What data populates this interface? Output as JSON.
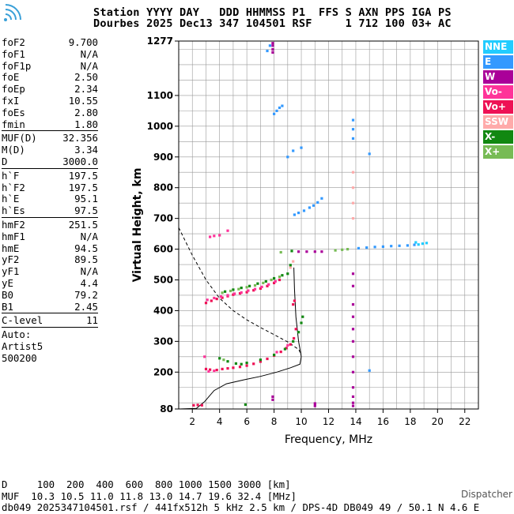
{
  "header": {
    "line1": "Station YYYY DAY   DDD HHMMSS P1  FFS S AXN PPS IGA PS",
    "line2": "Dourbes 2025 Dec13 347 104501 RSF     1 712 100 03+ AC"
  },
  "logo_icon": "signal-waves-icon",
  "params": [
    {
      "label": "foF2",
      "value": "9.700"
    },
    {
      "label": "foF1",
      "value": "N/A"
    },
    {
      "label": "foF1p",
      "value": "N/A"
    },
    {
      "label": "foE",
      "value": "2.50"
    },
    {
      "label": "foEp",
      "value": "2.34"
    },
    {
      "label": "fxI",
      "value": "10.55"
    },
    {
      "label": "foEs",
      "value": "2.80"
    },
    {
      "label": "fmin",
      "value": "1.80"
    },
    {
      "sep": true
    },
    {
      "label": "MUF(D)",
      "value": "32.356"
    },
    {
      "label": "M(D)",
      "value": "3.34"
    },
    {
      "label": "D",
      "value": "3000.0"
    },
    {
      "sep": true
    },
    {
      "label": "h`F",
      "value": "197.5"
    },
    {
      "label": "h`F2",
      "value": "197.5"
    },
    {
      "label": "h`E",
      "value": "95.1"
    },
    {
      "label": "h`Es",
      "value": "97.5"
    },
    {
      "sep": true
    },
    {
      "label": "hmF2",
      "value": "251.5"
    },
    {
      "label": "hmF1",
      "value": "N/A"
    },
    {
      "label": "hmE",
      "value": "94.5"
    },
    {
      "label": "yF2",
      "value": "89.5"
    },
    {
      "label": "yF1",
      "value": "N/A"
    },
    {
      "label": "yE",
      "value": "4.4"
    },
    {
      "label": "B0",
      "value": "79.2"
    },
    {
      "label": "B1",
      "value": "2.45"
    },
    {
      "sep": true
    },
    {
      "label": "C-level",
      "value": "11"
    },
    {
      "sep": true
    },
    {
      "note": "Auto:"
    },
    {
      "note": "Artist5"
    },
    {
      "note": "500200"
    }
  ],
  "legend": [
    {
      "label": "NNE",
      "color": "#22ccff"
    },
    {
      "label": "E",
      "color": "#3399ff"
    },
    {
      "label": "W",
      "color": "#aa0099"
    },
    {
      "label": "Vo-",
      "color": "#ff3399"
    },
    {
      "label": "Vo+",
      "color": "#ee1155"
    },
    {
      "label": "SSW",
      "color": "#ffaaaa"
    },
    {
      "label": "X-",
      "color": "#118811"
    },
    {
      "label": "X+",
      "color": "#77bb55"
    }
  ],
  "chart_data": {
    "type": "scatter",
    "xlabel": "Frequency, MHz",
    "ylabel": "Virtual Height, km",
    "xlim": [
      1,
      23
    ],
    "ylim": [
      80,
      1277
    ],
    "x_ticks": [
      2,
      4,
      6,
      8,
      10,
      12,
      14,
      16,
      18,
      20,
      22
    ],
    "y_ticks": [
      80,
      200,
      300,
      400,
      500,
      600,
      700,
      800,
      900,
      1000,
      1100,
      1277
    ],
    "grid": true,
    "series": [
      {
        "name": "Vo+",
        "color": "#ee1155",
        "points": [
          [
            2.1,
            92
          ],
          [
            2.4,
            93
          ],
          [
            2.7,
            92
          ],
          [
            3.0,
            210
          ],
          [
            3.3,
            208
          ],
          [
            3.8,
            207
          ],
          [
            4.2,
            210
          ],
          [
            4.6,
            212
          ],
          [
            5.0,
            214
          ],
          [
            5.5,
            217
          ],
          [
            6.0,
            221
          ],
          [
            6.5,
            227
          ],
          [
            7.0,
            234
          ],
          [
            7.5,
            243
          ],
          [
            8.0,
            254
          ],
          [
            8.5,
            266
          ],
          [
            8.9,
            278
          ],
          [
            9.2,
            290
          ],
          [
            9.45,
            310
          ],
          [
            9.6,
            340
          ],
          [
            3.0,
            425
          ],
          [
            3.4,
            432
          ],
          [
            3.8,
            438
          ],
          [
            4.2,
            442
          ],
          [
            4.6,
            447
          ],
          [
            5.0,
            452
          ],
          [
            5.5,
            456
          ],
          [
            6.0,
            460
          ],
          [
            6.5,
            466
          ],
          [
            7.0,
            472
          ],
          [
            7.5,
            480
          ],
          [
            8.0,
            490
          ],
          [
            8.4,
            500
          ],
          [
            9.4,
            420
          ],
          [
            9.5,
            432
          ]
        ]
      },
      {
        "name": "Vo-",
        "color": "#ff3399",
        "points": [
          [
            3.1,
            435
          ],
          [
            3.6,
            441
          ],
          [
            4.1,
            446
          ],
          [
            4.6,
            450
          ],
          [
            5.1,
            455
          ],
          [
            5.6,
            459
          ],
          [
            6.1,
            465
          ],
          [
            6.6,
            470
          ],
          [
            7.1,
            477
          ],
          [
            7.6,
            485
          ],
          [
            8.1,
            495
          ],
          [
            3.2,
            202
          ],
          [
            3.6,
            204
          ],
          [
            8.2,
            265
          ],
          [
            9.0,
            287
          ],
          [
            3.3,
            640
          ],
          [
            3.6,
            643
          ],
          [
            4.0,
            645
          ],
          [
            4.6,
            660
          ],
          [
            2.9,
            250
          ]
        ]
      },
      {
        "name": "W",
        "color": "#aa0099",
        "points": [
          [
            7.9,
            1240
          ],
          [
            7.9,
            1250
          ],
          [
            7.9,
            1262
          ],
          [
            7.9,
            1270
          ],
          [
            7.9,
            110
          ],
          [
            7.9,
            120
          ],
          [
            11.0,
            90
          ],
          [
            11.0,
            98
          ],
          [
            13.8,
            300
          ],
          [
            13.8,
            340
          ],
          [
            13.8,
            380
          ],
          [
            13.8,
            420
          ],
          [
            13.8,
            480
          ],
          [
            13.8,
            520
          ],
          [
            13.8,
            250
          ],
          [
            13.8,
            200
          ],
          [
            13.8,
            150
          ],
          [
            13.8,
            120
          ],
          [
            13.8,
            100
          ],
          [
            13.8,
            90
          ],
          [
            9.8,
            592
          ],
          [
            10.4,
            592
          ],
          [
            11.0,
            592
          ],
          [
            11.5,
            592
          ]
        ]
      },
      {
        "name": "E",
        "color": "#3399ff",
        "points": [
          [
            8.0,
            1040
          ],
          [
            8.2,
            1050
          ],
          [
            8.4,
            1060
          ],
          [
            8.6,
            1066
          ],
          [
            7.5,
            1245
          ],
          [
            7.7,
            1262
          ],
          [
            9.5,
            712
          ],
          [
            9.8,
            718
          ],
          [
            10.2,
            725
          ],
          [
            10.6,
            735
          ],
          [
            10.9,
            742
          ],
          [
            11.2,
            752
          ],
          [
            11.5,
            765
          ],
          [
            9.0,
            900
          ],
          [
            9.4,
            920
          ],
          [
            10.0,
            930
          ],
          [
            13.8,
            1020
          ],
          [
            13.8,
            990
          ],
          [
            13.8,
            960
          ],
          [
            15.0,
            910
          ],
          [
            15.0,
            205
          ],
          [
            14.2,
            603
          ],
          [
            14.8,
            605
          ],
          [
            15.4,
            607
          ],
          [
            16.0,
            608
          ],
          [
            16.6,
            610
          ],
          [
            17.2,
            611
          ],
          [
            17.8,
            612
          ],
          [
            18.3,
            614
          ]
        ]
      },
      {
        "name": "NNE",
        "color": "#22ccff",
        "points": [
          [
            18.6,
            615
          ],
          [
            18.9,
            618
          ],
          [
            19.2,
            620
          ],
          [
            18.4,
            622
          ]
        ]
      },
      {
        "name": "SSW",
        "color": "#ffaaaa",
        "points": [
          [
            13.8,
            700
          ],
          [
            13.8,
            750
          ],
          [
            13.8,
            800
          ],
          [
            13.8,
            850
          ],
          [
            9.2,
            540
          ],
          [
            9.4,
            560
          ]
        ]
      },
      {
        "name": "X-",
        "color": "#118811",
        "points": [
          [
            4.0,
            245
          ],
          [
            4.6,
            235
          ],
          [
            5.2,
            228
          ],
          [
            5.6,
            226
          ],
          [
            6.0,
            230
          ],
          [
            7.0,
            240
          ],
          [
            8.0,
            256
          ],
          [
            8.8,
            275
          ],
          [
            9.4,
            300
          ],
          [
            9.8,
            330
          ],
          [
            10.0,
            360
          ],
          [
            10.1,
            380
          ],
          [
            4.4,
            462
          ],
          [
            5.0,
            468
          ],
          [
            5.6,
            474
          ],
          [
            6.2,
            480
          ],
          [
            6.8,
            488
          ],
          [
            7.4,
            495
          ],
          [
            8.0,
            505
          ],
          [
            8.6,
            515
          ],
          [
            9.0,
            520
          ],
          [
            9.2,
            548
          ],
          [
            5.9,
            94
          ],
          [
            9.3,
            594
          ]
        ]
      },
      {
        "name": "X+",
        "color": "#77bb55",
        "points": [
          [
            4.2,
            458
          ],
          [
            4.8,
            464
          ],
          [
            5.4,
            470
          ],
          [
            6.0,
            476
          ],
          [
            6.6,
            482
          ],
          [
            7.2,
            490
          ],
          [
            7.8,
            500
          ],
          [
            8.4,
            510
          ],
          [
            12.5,
            596
          ],
          [
            13.0,
            598
          ],
          [
            13.4,
            600
          ],
          [
            4.3,
            240
          ],
          [
            8.5,
            590
          ]
        ]
      }
    ],
    "curves": [
      {
        "kind": "solid",
        "points": [
          [
            1.0,
            80
          ],
          [
            2.3,
            82
          ],
          [
            2.9,
            104
          ],
          [
            3.6,
            140
          ],
          [
            4.5,
            162
          ],
          [
            5.8,
            175
          ],
          [
            7.0,
            186
          ],
          [
            8.2,
            200
          ],
          [
            9.2,
            214
          ],
          [
            9.9,
            226
          ],
          [
            10.0,
            250
          ],
          [
            9.8,
            300
          ],
          [
            9.6,
            380
          ],
          [
            9.5,
            470
          ],
          [
            9.45,
            540
          ]
        ]
      },
      {
        "kind": "dashed",
        "points": [
          [
            1.0,
            670
          ],
          [
            2.0,
            580
          ],
          [
            3.0,
            500
          ],
          [
            4.0,
            440
          ],
          [
            5.0,
            400
          ],
          [
            6.0,
            370
          ],
          [
            7.0,
            345
          ],
          [
            8.0,
            322
          ],
          [
            9.0,
            298
          ],
          [
            9.8,
            274
          ],
          [
            10.0,
            258
          ]
        ]
      }
    ]
  },
  "footer": {
    "d_row": "D     100  200  400  600  800 1000 1500 3000 [km]",
    "muf_row": "MUF  10.3 10.5 11.0 11.8 13.0 14.7 19.6 32.4 [MHz]",
    "info_row": "db049 2025347104501.rsf / 441fx512h 5 kHz 2.5 km / DPS-4D DB049 49 / 50.1 N 4.6 E"
  },
  "dispatcher": "Dispatcher"
}
